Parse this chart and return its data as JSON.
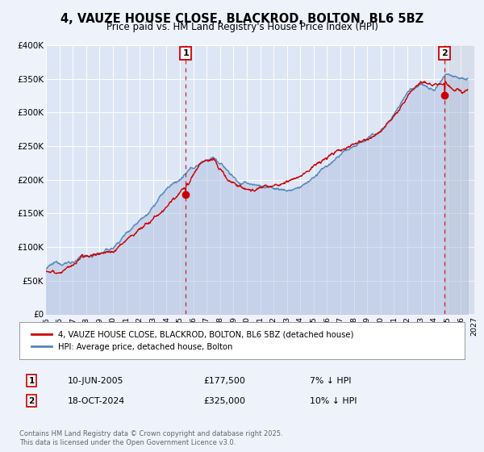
{
  "title": "4, VAUZE HOUSE CLOSE, BLACKROD, BOLTON, BL6 5BZ",
  "subtitle": "Price paid vs. HM Land Registry's House Price Index (HPI)",
  "legend_label_red": "4, VAUZE HOUSE CLOSE, BLACKROD, BOLTON, BL6 5BZ (detached house)",
  "legend_label_blue": "HPI: Average price, detached house, Bolton",
  "marker1_date": 2005.44,
  "marker1_value": 177500,
  "marker1_label": "1",
  "marker1_text": "10-JUN-2005",
  "marker1_price": "£177,500",
  "marker1_hpi": "7% ↓ HPI",
  "marker2_date": 2024.79,
  "marker2_value": 325000,
  "marker2_label": "2",
  "marker2_text": "18-OCT-2024",
  "marker2_price": "£325,000",
  "marker2_hpi": "10% ↓ HPI",
  "xlim": [
    1995,
    2027
  ],
  "ylim": [
    0,
    400000
  ],
  "yticks": [
    0,
    50000,
    100000,
    150000,
    200000,
    250000,
    300000,
    350000,
    400000
  ],
  "ytick_labels": [
    "£0",
    "£50K",
    "£100K",
    "£150K",
    "£200K",
    "£250K",
    "£300K",
    "£350K",
    "£400K"
  ],
  "xticks": [
    1995,
    1996,
    1997,
    1998,
    1999,
    2000,
    2001,
    2002,
    2003,
    2004,
    2005,
    2006,
    2007,
    2008,
    2009,
    2010,
    2011,
    2012,
    2013,
    2014,
    2015,
    2016,
    2017,
    2018,
    2019,
    2020,
    2021,
    2022,
    2023,
    2024,
    2025,
    2026,
    2027
  ],
  "background_color": "#eef2fa",
  "plot_bg_color": "#dde6f5",
  "grid_color": "#ffffff",
  "red_color": "#cc0000",
  "blue_color": "#5588bb",
  "blue_fill_color": "#aabbdd",
  "vline_color": "#cc0000",
  "hatch_color": "#cccccc",
  "footnote": "Contains HM Land Registry data © Crown copyright and database right 2025.\nThis data is licensed under the Open Government Licence v3.0."
}
